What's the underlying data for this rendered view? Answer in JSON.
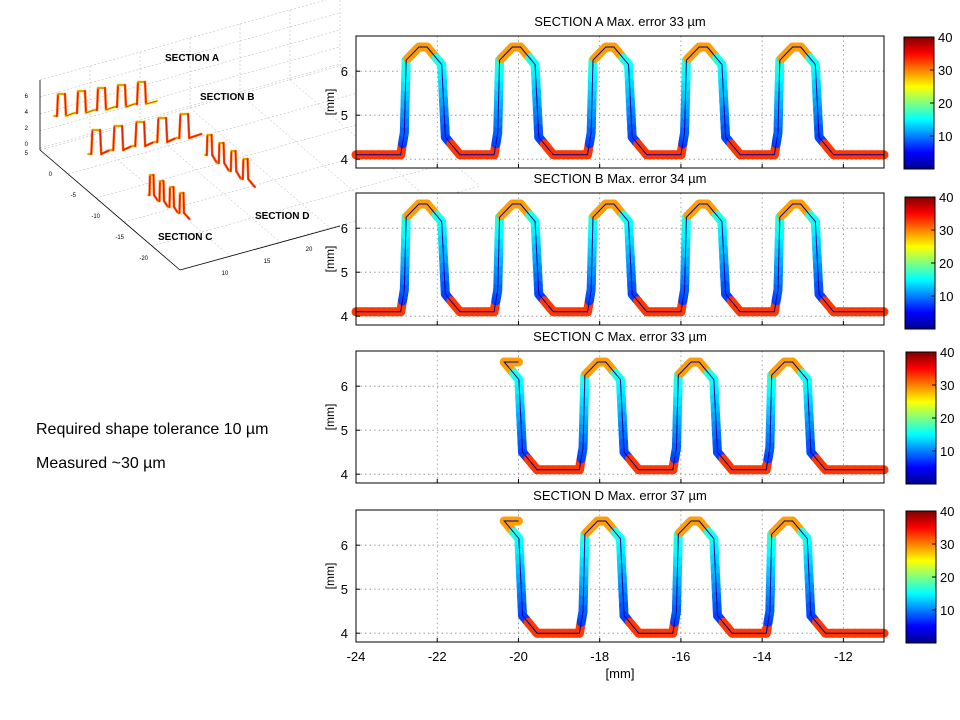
{
  "notes": {
    "required": "Required shape tolerance 10 µm",
    "measured": "Measured ~30 µm"
  },
  "overview": {
    "labels": [
      "SECTION A",
      "SECTION B",
      "SECTION C",
      "SECTION D"
    ],
    "z_ticks": [
      "6",
      "4",
      "2",
      "0"
    ],
    "y_ticks": [
      "5",
      "0",
      "-5",
      "-10",
      "-15",
      "-20"
    ],
    "x_ticks": [
      "10",
      "15",
      "20"
    ]
  },
  "colormap": [
    "#00008f",
    "#0000ff",
    "#0080ff",
    "#00ffff",
    "#80ff80",
    "#ffff00",
    "#ff8000",
    "#ff0000",
    "#800000"
  ],
  "chart_data": [
    {
      "type": "line",
      "title": "SECTION A Max. error 33 µm",
      "ylabel": "[mm]",
      "xlabel": "",
      "xlim": [
        -24,
        -11
      ],
      "ylim": [
        3.8,
        6.8
      ],
      "yticks": [
        4,
        5,
        6
      ],
      "xticks": [
        -24,
        -22,
        -20,
        -18,
        -16,
        -14,
        -12
      ],
      "show_xtick_labels": false,
      "grid": true,
      "baseline_start": -24,
      "rise_x": [
        -22.9,
        -20.6,
        -18.3,
        -16.0,
        -13.7
      ],
      "fall_x": [
        -21.8,
        -19.5,
        -17.2,
        -14.9,
        -12.6
      ],
      "low": 4.1,
      "high": 6.55,
      "colorbar": {
        "min": 0,
        "max": 40,
        "ticks": [
          10,
          20,
          30,
          40
        ]
      }
    },
    {
      "type": "line",
      "title": "SECTION B Max. error 34 µm",
      "ylabel": "[mm]",
      "xlabel": "",
      "xlim": [
        -24,
        -11
      ],
      "ylim": [
        3.8,
        6.8
      ],
      "yticks": [
        4,
        5,
        6
      ],
      "xticks": [
        -24,
        -22,
        -20,
        -18,
        -16,
        -14,
        -12
      ],
      "show_xtick_labels": false,
      "grid": true,
      "baseline_start": -24,
      "rise_x": [
        -22.9,
        -20.6,
        -18.3,
        -16.0,
        -13.7
      ],
      "fall_x": [
        -21.8,
        -19.5,
        -17.2,
        -14.9,
        -12.6
      ],
      "low": 4.1,
      "high": 6.55,
      "colorbar": {
        "min": 0,
        "max": 40,
        "ticks": [
          10,
          20,
          30,
          40
        ]
      }
    },
    {
      "type": "line",
      "title": "SECTION C Max. error 33 µm",
      "ylabel": "[mm]",
      "xlabel": "",
      "xlim": [
        -24,
        -11
      ],
      "ylim": [
        3.8,
        6.8
      ],
      "yticks": [
        4,
        5,
        6
      ],
      "xticks": [
        -24,
        -22,
        -20,
        -18,
        -16,
        -14,
        -12
      ],
      "show_xtick_labels": false,
      "grid": true,
      "baseline_start": -20.0,
      "start_high": true,
      "rise_x": [
        -18.5,
        -16.2,
        -13.9
      ],
      "fall_x": [
        -19.9,
        -17.4,
        -15.1,
        -12.8
      ],
      "low": 4.1,
      "high": 6.55,
      "colorbar": {
        "min": 0,
        "max": 40,
        "ticks": [
          10,
          20,
          30,
          40
        ]
      }
    },
    {
      "type": "line",
      "title": "SECTION D Max. error 37 µm",
      "ylabel": "[mm]",
      "xlabel": "[mm]",
      "xlim": [
        -24,
        -11
      ],
      "ylim": [
        3.8,
        6.8
      ],
      "yticks": [
        4,
        5,
        6
      ],
      "xticks": [
        -24,
        -22,
        -20,
        -18,
        -16,
        -14,
        -12
      ],
      "show_xtick_labels": true,
      "grid": true,
      "baseline_start": -20.0,
      "start_high": true,
      "rise_x": [
        -18.5,
        -16.2,
        -13.9
      ],
      "fall_x": [
        -19.9,
        -17.4,
        -15.1,
        -12.8
      ],
      "low": 4.0,
      "high": 6.55,
      "colorbar": {
        "min": 0,
        "max": 40,
        "ticks": [
          10,
          20,
          30,
          40
        ]
      }
    }
  ]
}
